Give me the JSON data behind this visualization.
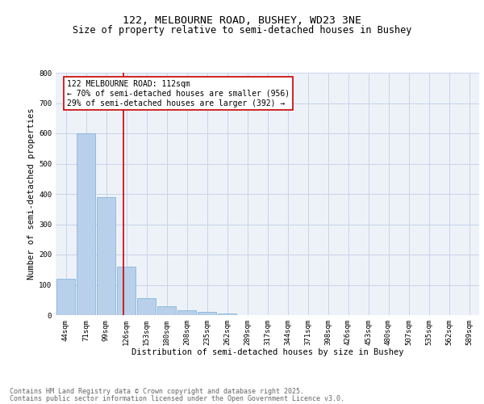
{
  "title1": "122, MELBOURNE ROAD, BUSHEY, WD23 3NE",
  "title2": "Size of property relative to semi-detached houses in Bushey",
  "xlabel": "Distribution of semi-detached houses by size in Bushey",
  "ylabel": "Number of semi-detached properties",
  "bar_labels": [
    "44sqm",
    "71sqm",
    "99sqm",
    "126sqm",
    "153sqm",
    "180sqm",
    "208sqm",
    "235sqm",
    "262sqm",
    "289sqm",
    "317sqm",
    "344sqm",
    "371sqm",
    "398sqm",
    "426sqm",
    "453sqm",
    "480sqm",
    "507sqm",
    "535sqm",
    "562sqm",
    "589sqm"
  ],
  "bar_values": [
    120,
    600,
    390,
    160,
    57,
    30,
    15,
    12,
    5,
    0,
    0,
    0,
    0,
    0,
    0,
    0,
    0,
    0,
    0,
    0,
    0
  ],
  "bar_color": "#b8d0ea",
  "bar_edge_color": "#7aafd4",
  "ylim": [
    0,
    800
  ],
  "yticks": [
    0,
    100,
    200,
    300,
    400,
    500,
    600,
    700,
    800
  ],
  "vline_x": 2.85,
  "vline_color": "#cc0000",
  "annotation_text": "122 MELBOURNE ROAD: 112sqm\n← 70% of semi-detached houses are smaller (956)\n29% of semi-detached houses are larger (392) →",
  "annotation_box_color": "#cc0000",
  "grid_color": "#c8d4e8",
  "background_color": "#edf2f9",
  "footer_line1": "Contains HM Land Registry data © Crown copyright and database right 2025.",
  "footer_line2": "Contains public sector information licensed under the Open Government Licence v3.0.",
  "title_fontsize": 9.5,
  "subtitle_fontsize": 8.5,
  "axis_label_fontsize": 7.5,
  "tick_fontsize": 6.5,
  "annotation_fontsize": 7,
  "footer_fontsize": 6
}
